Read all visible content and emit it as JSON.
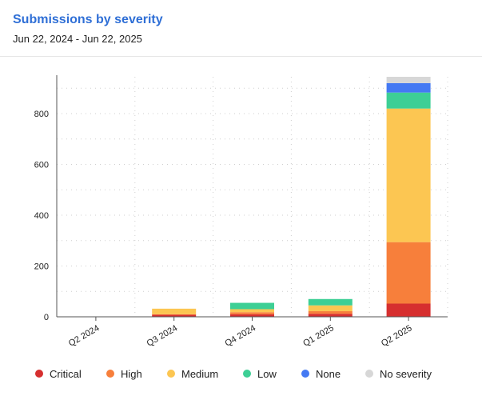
{
  "header": {
    "title": "Submissions by severity",
    "date_range": "Jun 22, 2024 - Jun 22, 2025"
  },
  "chart_data": {
    "type": "bar",
    "stacked": true,
    "categories": [
      "Q2 2024",
      "Q3 2024",
      "Q4 2024",
      "Q1 2025",
      "Q2 2025"
    ],
    "series": [
      {
        "name": "Critical",
        "color": "#d62f2f",
        "values": [
          0,
          8,
          10,
          12,
          52
        ]
      },
      {
        "name": "High",
        "color": "#f77f3b",
        "values": [
          0,
          2,
          8,
          10,
          242
        ]
      },
      {
        "name": "Medium",
        "color": "#fcc652",
        "values": [
          0,
          22,
          12,
          23,
          526
        ]
      },
      {
        "name": "Low",
        "color": "#3dcf95",
        "values": [
          0,
          0,
          25,
          25,
          63
        ]
      },
      {
        "name": "None",
        "color": "#4479f3",
        "values": [
          0,
          0,
          0,
          0,
          37
        ]
      },
      {
        "name": "No severity",
        "color": "#d7d7d7",
        "values": [
          0,
          0,
          0,
          0,
          25
        ]
      }
    ],
    "y_ticks": [
      0,
      200,
      400,
      600,
      800
    ],
    "ylim": [
      0,
      945
    ],
    "grid": true,
    "legend_position": "bottom"
  }
}
